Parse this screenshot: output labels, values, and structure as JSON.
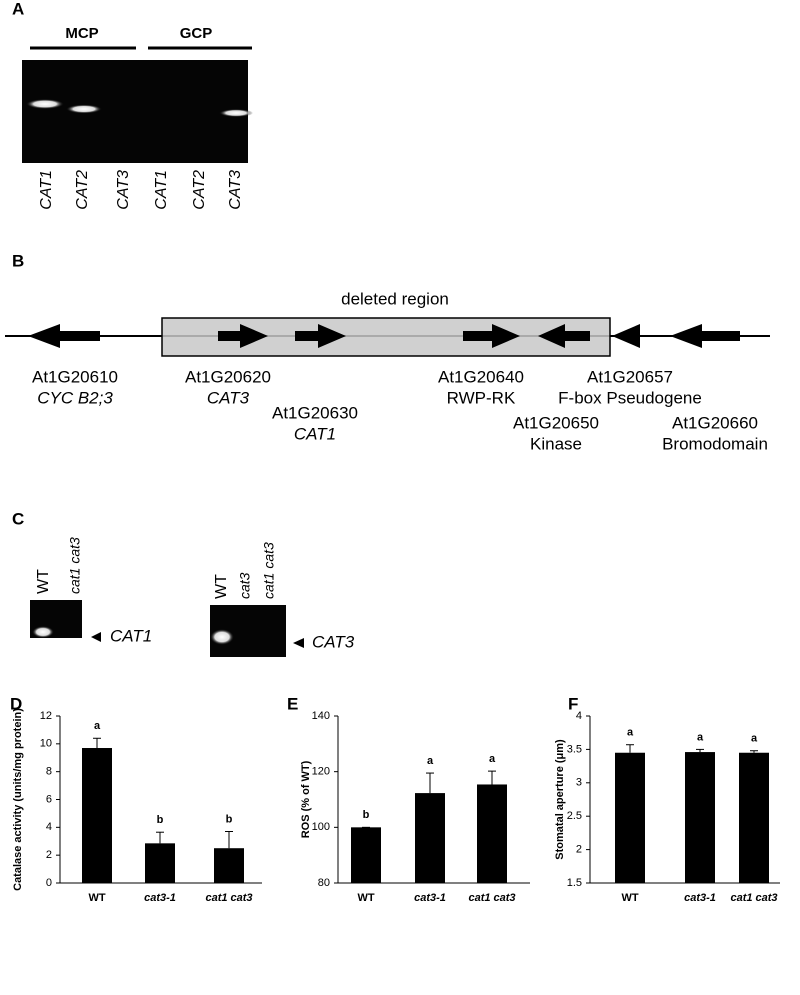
{
  "panel_a": {
    "label": "A",
    "groups": [
      "MCP",
      "GCP"
    ],
    "lanes": [
      "CAT1",
      "CAT2",
      "CAT3",
      "CAT1",
      "CAT2",
      "CAT3"
    ]
  },
  "panel_b": {
    "label": "B",
    "region": "deleted region",
    "genes": [
      {
        "id": "At1G20610",
        "name": "CYC B2;3"
      },
      {
        "id": "At1G20620",
        "name": "CAT3"
      },
      {
        "id": "At1G20630",
        "name": "CAT1"
      },
      {
        "id": "At1G20640",
        "name": "RWP-RK"
      },
      {
        "id": "At1G20650",
        "name": "Kinase"
      },
      {
        "id": "At1G20657",
        "name": "F-box Pseudogene"
      },
      {
        "id": "At1G20660",
        "name": "Bromodomain"
      }
    ]
  },
  "panel_c": {
    "label": "C",
    "gels": [
      {
        "lanes": [
          "WT",
          "cat1 cat3"
        ],
        "target": "CAT1"
      },
      {
        "lanes": [
          "WT",
          "cat3",
          "cat1 cat3"
        ],
        "target": "CAT3"
      }
    ]
  },
  "chart_data": [
    {
      "type": "bar",
      "label": "D",
      "ylabel": "Catalase activity (units/mg protein)",
      "categories": [
        "WT",
        "cat3-1",
        "cat1 cat3"
      ],
      "values": [
        9.7,
        2.85,
        2.5
      ],
      "errors": [
        0.7,
        0.8,
        1.2
      ],
      "annotations": [
        "a",
        "b",
        "b"
      ],
      "color": "#000000",
      "ylim": [
        0,
        12
      ],
      "yticks": [
        0,
        2,
        4,
        6,
        8,
        10,
        12
      ]
    },
    {
      "type": "bar",
      "label": "E",
      "ylabel": "ROS (% of WT)",
      "categories": [
        "WT",
        "cat3-1",
        "cat1 cat3"
      ],
      "values": [
        100,
        112.3,
        115.4
      ],
      "errors": [
        0,
        7.2,
        4.8
      ],
      "annotations": [
        "b",
        "a",
        "a"
      ],
      "color": "#000000",
      "ylim": [
        80,
        140
      ],
      "yticks": [
        80,
        100,
        120,
        140
      ]
    },
    {
      "type": "bar",
      "label": "F",
      "ylabel": "Stomatal aperture (μm)",
      "categories": [
        "WT",
        "cat3-1",
        "cat1 cat3"
      ],
      "values": [
        3.45,
        3.46,
        3.45
      ],
      "errors": [
        0.12,
        0.04,
        0.03
      ],
      "annotations": [
        "a",
        "a",
        "a"
      ],
      "color": "#000000",
      "ylim": [
        1.5,
        4
      ],
      "yticks": [
        1.5,
        2,
        2.5,
        3,
        3.5,
        4
      ]
    }
  ]
}
